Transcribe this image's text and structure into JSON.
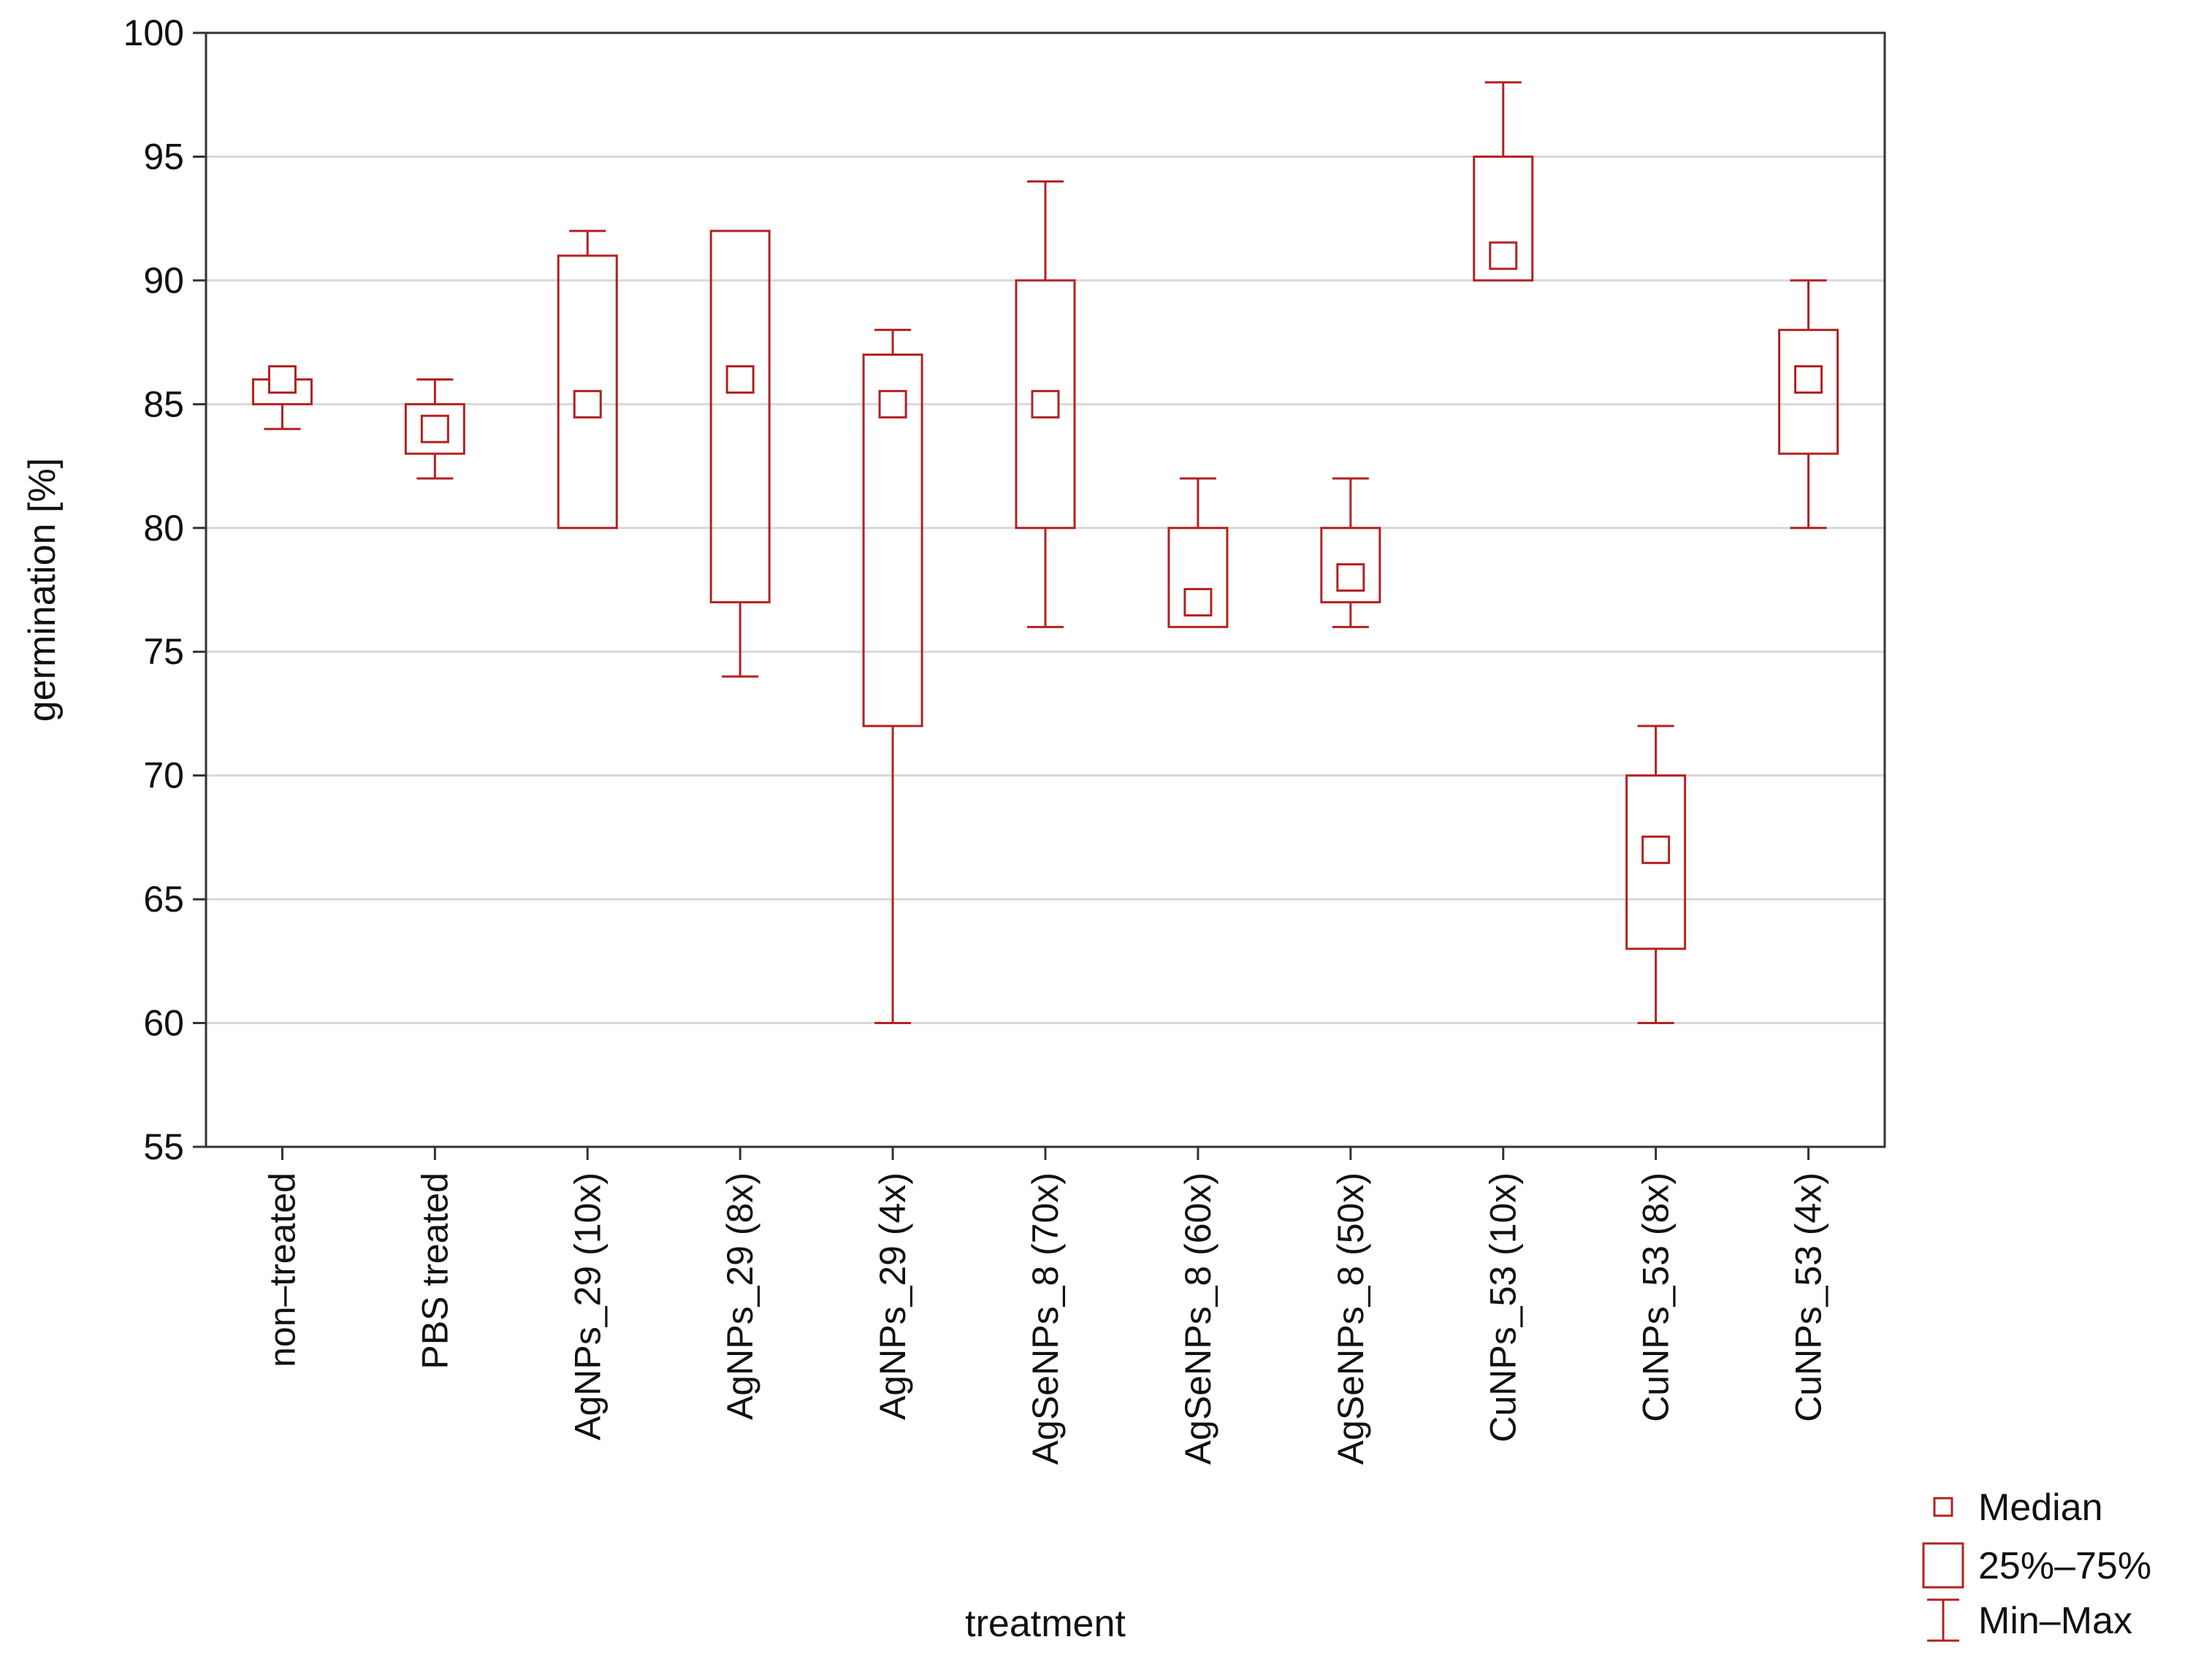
{
  "chart_data": {
    "type": "box",
    "title": "",
    "xlabel": "treatment",
    "ylabel": "germination [%]",
    "ylim": [
      55,
      100
    ],
    "yticks": [
      55,
      60,
      65,
      70,
      75,
      80,
      85,
      90,
      95,
      100
    ],
    "grid": true,
    "legend_position": "bottom-right",
    "legend": [
      {
        "key": "median",
        "label": "Median"
      },
      {
        "key": "box",
        "label": "25%–75%"
      },
      {
        "key": "whisker",
        "label": "Min–Max"
      }
    ],
    "colors": {
      "series": "#b22222",
      "grid": "#d8d8d8",
      "axis": "#333333",
      "background": "#ffffff"
    },
    "categories": [
      "non–treated",
      "PBS treated",
      "AgNPs_29 (10x)",
      "AgNPs_29 (8x)",
      "AgNPs_29 (4x)",
      "AgSeNPs_8 (70x)",
      "AgSeNPs_8 (60x)",
      "AgSeNPs_8 (50x)",
      "CuNPs_53 (10x)",
      "CuNPs_53 (8x)",
      "CuNPs_53 (4x)"
    ],
    "series": [
      {
        "name": "non–treated",
        "min": 84,
        "q1": 85,
        "median": 86,
        "q3": 86,
        "max": 86
      },
      {
        "name": "PBS treated",
        "min": 82,
        "q1": 83,
        "median": 84,
        "q3": 85,
        "max": 86
      },
      {
        "name": "AgNPs_29 (10x)",
        "min": 80,
        "q1": 80,
        "median": 85,
        "q3": 91,
        "max": 92
      },
      {
        "name": "AgNPs_29 (8x)",
        "min": 74,
        "q1": 77,
        "median": 86,
        "q3": 92,
        "max": 92
      },
      {
        "name": "AgNPs_29 (4x)",
        "min": 60,
        "q1": 72,
        "median": 85,
        "q3": 87,
        "max": 88
      },
      {
        "name": "AgSeNPs_8 (70x)",
        "min": 76,
        "q1": 80,
        "median": 85,
        "q3": 90,
        "max": 94
      },
      {
        "name": "AgSeNPs_8 (60x)",
        "min": 76,
        "q1": 76,
        "median": 77,
        "q3": 80,
        "max": 82
      },
      {
        "name": "AgSeNPs_8 (50x)",
        "min": 76,
        "q1": 77,
        "median": 78,
        "q3": 80,
        "max": 82
      },
      {
        "name": "CuNPs_53 (10x)",
        "min": 90,
        "q1": 90,
        "median": 91,
        "q3": 95,
        "max": 98
      },
      {
        "name": "CuNPs_53 (8x)",
        "min": 60,
        "q1": 63,
        "median": 67,
        "q3": 70,
        "max": 72
      },
      {
        "name": "CuNPs_53 (4x)",
        "min": 80,
        "q1": 83,
        "median": 86,
        "q3": 88,
        "max": 90
      }
    ]
  }
}
